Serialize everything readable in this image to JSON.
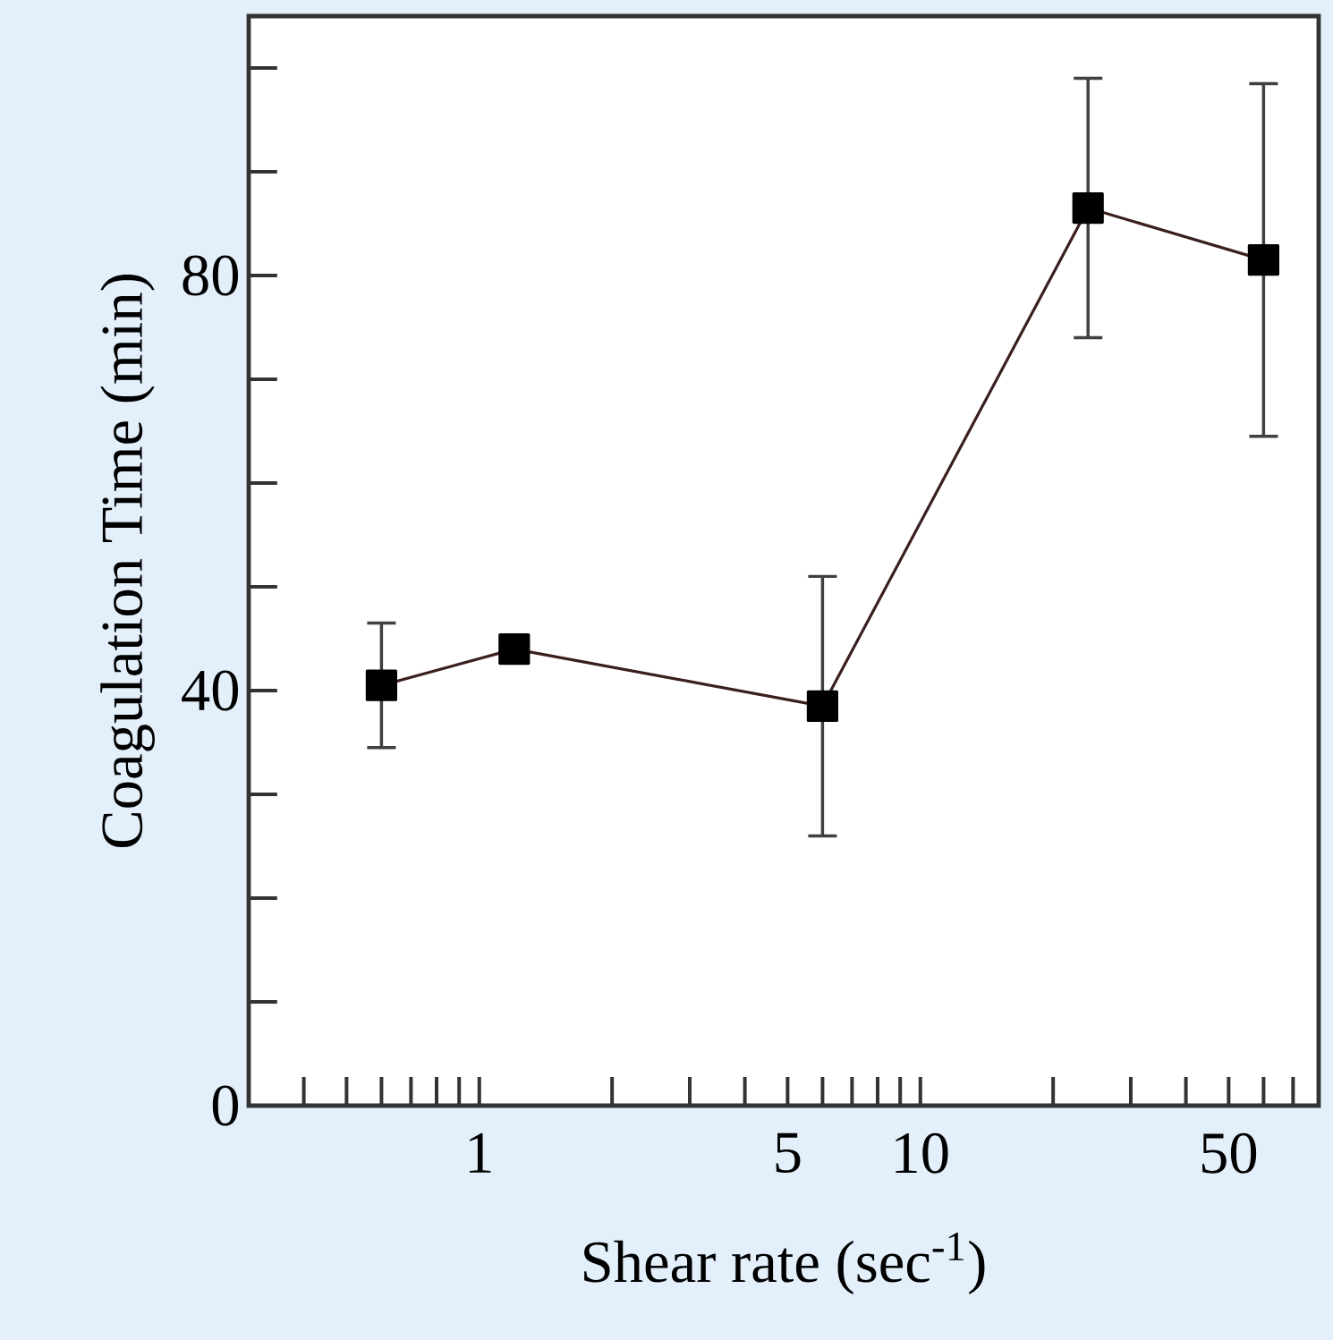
{
  "chart_data": {
    "type": "line",
    "xlabel": "Shear rate (sec$^{-1}$)",
    "ylabel": "Coagulation Time (min)",
    "x": [
      0.6,
      1.2,
      6,
      24,
      60
    ],
    "series": [
      {
        "color": "#3a1f1f",
        "values": [
          40.5,
          44,
          38.5,
          86.5,
          81.5
        ],
        "errors": [
          6,
          null,
          12.5,
          12.5,
          17
        ]
      }
    ],
    "marker": "square",
    "line_style": "solid",
    "log": "x",
    "xlim": [
      0.3,
      80
    ],
    "ylim": [
      0,
      105
    ],
    "xticks": [
      {
        "value": 0.4,
        "label": null
      },
      {
        "value": 0.5,
        "label": null
      },
      {
        "value": 0.6,
        "label": null
      },
      {
        "value": 0.7,
        "label": null
      },
      {
        "value": 0.8,
        "label": null
      },
      {
        "value": 0.9,
        "label": null
      },
      1,
      {
        "value": 2,
        "label": null
      },
      {
        "value": 3,
        "label": null
      },
      {
        "value": 4,
        "label": null
      },
      5,
      {
        "value": 6,
        "label": null
      },
      {
        "value": 7,
        "label": null
      },
      {
        "value": 8,
        "label": null
      },
      {
        "value": 9,
        "label": null
      },
      10,
      {
        "value": 20,
        "label": null
      },
      {
        "value": 30,
        "label": null
      },
      {
        "value": 40,
        "label": null
      },
      50,
      {
        "value": 60,
        "label": null
      },
      {
        "value": 70,
        "label": null
      }
    ],
    "yticks": [
      0,
      {
        "value": 10,
        "label": null
      },
      {
        "value": 20,
        "label": null
      },
      {
        "value": 30,
        "label": null
      },
      40,
      {
        "value": 50,
        "label": null
      },
      {
        "value": 60,
        "label": null
      },
      {
        "value": 70,
        "label": null
      },
      80,
      {
        "value": 90,
        "label": null
      },
      {
        "value": 100,
        "label": null
      }
    ]
  }
}
